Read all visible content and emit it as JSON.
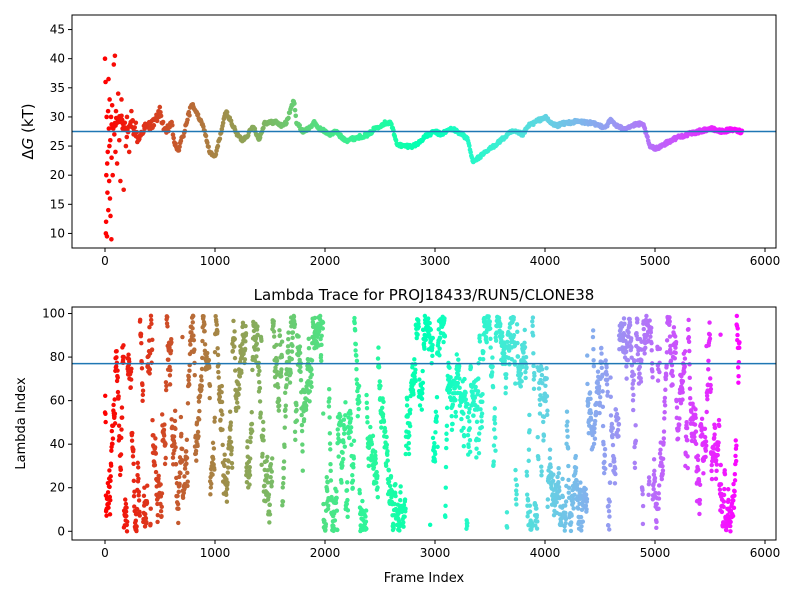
{
  "chart_data": [
    {
      "type": "scatter",
      "title": "",
      "xlabel": "",
      "ylabel": "ΔG (kT)",
      "ylabel_parts": {
        "delta": "Δ",
        "symbol": "G",
        "unit": " (kT)"
      },
      "xlim": [
        -300,
        6100
      ],
      "ylim": [
        7.5,
        47.5
      ],
      "xticks": [
        0,
        1000,
        2000,
        3000,
        4000,
        5000,
        6000
      ],
      "yticks": [
        10,
        15,
        20,
        25,
        30,
        35,
        40,
        45
      ],
      "grid": false,
      "colormap": "rainbow (reversed: red at frame 0, violet at last frame)",
      "reference_line": {
        "y": 27.5,
        "color": "#1f77b4"
      },
      "frames": 5800,
      "trace_points": [
        [
          60,
          28
        ],
        [
          100,
          29
        ],
        [
          150,
          30
        ],
        [
          200,
          27
        ],
        [
          250,
          29
        ],
        [
          300,
          26
        ],
        [
          350,
          28
        ],
        [
          400,
          28.5
        ],
        [
          450,
          29
        ],
        [
          500,
          31
        ],
        [
          550,
          27
        ],
        [
          600,
          29
        ],
        [
          650,
          24
        ],
        [
          700,
          26
        ],
        [
          750,
          30
        ],
        [
          800,
          32
        ],
        [
          850,
          30
        ],
        [
          900,
          28
        ],
        [
          950,
          24
        ],
        [
          1000,
          23
        ],
        [
          1050,
          27
        ],
        [
          1100,
          31
        ],
        [
          1150,
          29
        ],
        [
          1200,
          27
        ],
        [
          1250,
          26
        ],
        [
          1300,
          27
        ],
        [
          1350,
          28.5
        ],
        [
          1400,
          26
        ],
        [
          1450,
          29
        ],
        [
          1500,
          29
        ],
        [
          1550,
          29.2
        ],
        [
          1600,
          28.5
        ],
        [
          1650,
          29
        ],
        [
          1700,
          32
        ],
        [
          1720,
          33
        ],
        [
          1740,
          29
        ],
        [
          1800,
          27.5
        ],
        [
          1850,
          28
        ],
        [
          1900,
          29
        ],
        [
          1950,
          28
        ],
        [
          2000,
          27.5
        ],
        [
          2050,
          27
        ],
        [
          2100,
          27.5
        ],
        [
          2150,
          26.5
        ],
        [
          2200,
          26
        ],
        [
          2300,
          26.5
        ],
        [
          2400,
          27
        ],
        [
          2450,
          28
        ],
        [
          2500,
          28.5
        ],
        [
          2550,
          29
        ],
        [
          2600,
          29
        ],
        [
          2650,
          25.5
        ],
        [
          2700,
          25
        ],
        [
          2800,
          25
        ],
        [
          2850,
          25.5
        ],
        [
          2900,
          26.5
        ],
        [
          2950,
          27
        ],
        [
          3000,
          27.5
        ],
        [
          3050,
          27
        ],
        [
          3100,
          27.5
        ],
        [
          3150,
          28
        ],
        [
          3200,
          27.5
        ],
        [
          3250,
          27
        ],
        [
          3300,
          26
        ],
        [
          3340,
          22.5
        ],
        [
          3400,
          23
        ],
        [
          3500,
          24.5
        ],
        [
          3600,
          26
        ],
        [
          3700,
          27.5
        ],
        [
          3800,
          27
        ],
        [
          3850,
          28.5
        ],
        [
          3900,
          29
        ],
        [
          4000,
          30
        ],
        [
          4050,
          29
        ],
        [
          4100,
          28.5
        ],
        [
          4200,
          29
        ],
        [
          4300,
          29.2
        ],
        [
          4400,
          29
        ],
        [
          4500,
          28.5
        ],
        [
          4550,
          28.3
        ],
        [
          4600,
          29.5
        ],
        [
          4650,
          28.5
        ],
        [
          4700,
          28
        ],
        [
          4800,
          28.5
        ],
        [
          4850,
          28.8
        ],
        [
          4900,
          28.5
        ],
        [
          4950,
          25
        ],
        [
          5000,
          24.5
        ],
        [
          5100,
          25.5
        ],
        [
          5200,
          26.5
        ],
        [
          5300,
          27
        ],
        [
          5400,
          27.5
        ],
        [
          5500,
          28
        ],
        [
          5600,
          27.5
        ],
        [
          5700,
          27.8
        ],
        [
          5780,
          27.5
        ]
      ],
      "early_spread": [
        [
          0,
          40
        ],
        [
          5,
          36
        ],
        [
          8,
          10
        ],
        [
          10,
          12
        ],
        [
          12,
          20
        ],
        [
          15,
          30
        ],
        [
          18,
          9.5
        ],
        [
          20,
          22
        ],
        [
          22,
          17
        ],
        [
          25,
          24
        ],
        [
          28,
          31
        ],
        [
          30,
          14
        ],
        [
          32,
          36.5
        ],
        [
          35,
          28
        ],
        [
          38,
          19
        ],
        [
          40,
          25
        ],
        [
          42,
          33
        ],
        [
          45,
          16
        ],
        [
          48,
          26
        ],
        [
          50,
          13
        ],
        [
          55,
          30
        ],
        [
          58,
          9
        ],
        [
          60,
          23
        ],
        [
          65,
          32
        ],
        [
          70,
          20
        ],
        [
          75,
          28
        ],
        [
          80,
          39
        ],
        [
          85,
          27
        ],
        [
          90,
          40.5
        ],
        [
          95,
          24
        ],
        [
          100,
          31
        ],
        [
          110,
          22
        ],
        [
          120,
          34
        ],
        [
          130,
          26
        ],
        [
          140,
          19
        ],
        [
          150,
          33
        ],
        [
          160,
          28
        ],
        [
          170,
          17.5
        ],
        [
          180,
          29
        ],
        [
          190,
          25
        ],
        [
          200,
          30
        ],
        [
          220,
          24
        ],
        [
          240,
          31
        ],
        [
          260,
          27
        ],
        [
          280,
          29
        ]
      ]
    },
    {
      "type": "scatter",
      "title": "Lambda Trace for PROJ18433/RUN5/CLONE38",
      "xlabel": "Frame Index",
      "ylabel": "Lambda Index",
      "xlim": [
        -300,
        6100
      ],
      "ylim": [
        -4,
        103
      ],
      "xticks": [
        0,
        1000,
        2000,
        3000,
        4000,
        5000,
        6000
      ],
      "yticks": [
        0,
        20,
        40,
        60,
        80,
        100
      ],
      "grid": false,
      "colormap": "rainbow (reversed: red at frame 0, violet at last frame)",
      "reference_line": {
        "y": 77,
        "color": "#1f77b4"
      },
      "frames": 5800,
      "lambda_range": [
        0,
        99
      ],
      "points_per_frame_stride": 2
    }
  ]
}
